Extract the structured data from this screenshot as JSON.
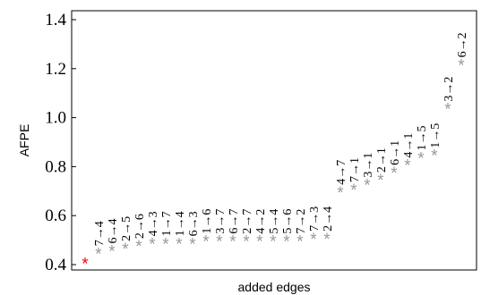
{
  "chart_data": {
    "type": "scatter",
    "title": "",
    "xlabel": "added edges",
    "ylabel": "AFPE",
    "ylim": [
      0.4,
      1.4
    ],
    "yticks": [
      0.4,
      0.6,
      0.8,
      1.0,
      1.2,
      1.4
    ],
    "ytick_labels": [
      "0.4",
      "0.6",
      "0.8",
      "1.0",
      "1.2",
      "1.4"
    ],
    "marker": "*",
    "colors": {
      "baseline": "#ff0000",
      "points": "#999999"
    },
    "points": [
      {
        "label": "",
        "value": 0.41,
        "highlight": true
      },
      {
        "label": "7→4",
        "value": 0.45
      },
      {
        "label": "6→4",
        "value": 0.46
      },
      {
        "label": "2→5",
        "value": 0.47
      },
      {
        "label": "2→6",
        "value": 0.48
      },
      {
        "label": "4→3",
        "value": 0.49
      },
      {
        "label": "1→7",
        "value": 0.49
      },
      {
        "label": "1→4",
        "value": 0.49
      },
      {
        "label": "6→3",
        "value": 0.49
      },
      {
        "label": "1→6",
        "value": 0.5
      },
      {
        "label": "3→7",
        "value": 0.5
      },
      {
        "label": "6→7",
        "value": 0.5
      },
      {
        "label": "2→7",
        "value": 0.5
      },
      {
        "label": "4→2",
        "value": 0.5
      },
      {
        "label": "5→4",
        "value": 0.5
      },
      {
        "label": "5→6",
        "value": 0.5
      },
      {
        "label": "7→2",
        "value": 0.5
      },
      {
        "label": "7→3",
        "value": 0.51
      },
      {
        "label": "2→4",
        "value": 0.51
      },
      {
        "label": "4→7",
        "value": 0.7
      },
      {
        "label": "7→1",
        "value": 0.71
      },
      {
        "label": "3→1",
        "value": 0.73
      },
      {
        "label": "2→1",
        "value": 0.75
      },
      {
        "label": "6→1",
        "value": 0.78
      },
      {
        "label": "4→1",
        "value": 0.81
      },
      {
        "label": "1→5",
        "value": 0.84
      },
      {
        "label": "1→5",
        "value": 0.85
      },
      {
        "label": "3→2",
        "value": 1.04
      },
      {
        "label": "6→2",
        "value": 1.22
      }
    ]
  }
}
